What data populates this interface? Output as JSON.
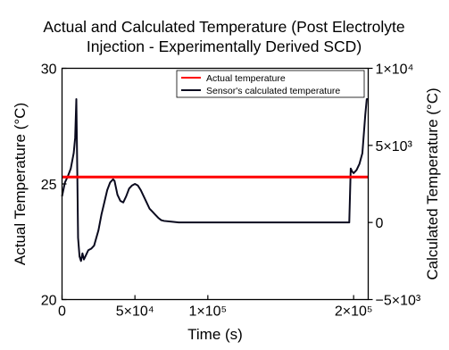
{
  "chart_data": {
    "type": "line",
    "title_lines": [
      "Actual and Calculated Temperature (Post Electrolyte",
      "Injection - Experimentally Derived SCD)"
    ],
    "xlabel": "Time (s)",
    "ylabel_left": "Actual Temperature (°C)",
    "ylabel_right": "Calculated Temperature (°C)",
    "xlim": [
      0,
      210000
    ],
    "ylim_left": [
      20,
      30
    ],
    "ylim_right": [
      -5000,
      10000
    ],
    "x_ticks": [
      {
        "value": 0,
        "label": "0"
      },
      {
        "value": 50000,
        "label": "5×10⁴"
      },
      {
        "value": 100000,
        "label": "1×10⁵"
      },
      {
        "value": 200000,
        "label": "2×10⁵"
      }
    ],
    "y_left_ticks": [
      {
        "value": 20,
        "label": "20"
      },
      {
        "value": 25,
        "label": "25"
      },
      {
        "value": 30,
        "label": "30"
      }
    ],
    "y_right_ticks": [
      {
        "value": -5000,
        "label": "−5×10³"
      },
      {
        "value": 0,
        "label": "0"
      },
      {
        "value": 5000,
        "label": "5×10³"
      },
      {
        "value": 10000,
        "label": "1×10⁴"
      }
    ],
    "grid": false,
    "legend_position": "top-right",
    "series": [
      {
        "name": "Actual temperature",
        "axis": "left",
        "color": "#ff0000",
        "x": [
          0,
          10000,
          20000,
          30000,
          40000,
          50000,
          60000,
          70000,
          80000,
          90000,
          100000,
          110000,
          120000,
          130000,
          140000,
          150000,
          160000,
          170000,
          180000,
          190000,
          200000,
          210000
        ],
        "y": [
          25.3,
          25.3,
          25.3,
          25.3,
          25.3,
          25.3,
          25.3,
          25.3,
          25.3,
          25.3,
          25.3,
          25.3,
          25.3,
          25.3,
          25.3,
          25.3,
          25.3,
          25.3,
          25.3,
          25.3,
          25.3,
          25.3
        ]
      },
      {
        "name": "Sensor's calculated temperature",
        "axis": "right",
        "color": "#0a0a1e",
        "x": [
          0,
          2000,
          4000,
          6000,
          8000,
          9000,
          9800,
          10500,
          11000,
          12000,
          13000,
          14000,
          15000,
          16000,
          17000,
          18000,
          20000,
          22000,
          25000,
          27000,
          29000,
          31000,
          33000,
          35000,
          36000,
          38000,
          40000,
          42000,
          44000,
          46000,
          48000,
          50000,
          52000,
          54000,
          56000,
          58000,
          60000,
          62000,
          64000,
          66000,
          68000,
          70000,
          75000,
          80000,
          90000,
          100000,
          110000,
          120000,
          130000,
          140000,
          150000,
          160000,
          170000,
          180000,
          190000,
          197000,
          198000,
          199000,
          200000,
          202000,
          204000,
          206000,
          208000,
          209000,
          210000
        ],
        "y": [
          1700,
          2600,
          3000,
          3500,
          4500,
          5500,
          8000,
          3000,
          -1000,
          -2200,
          -2500,
          -2000,
          -2400,
          -2200,
          -2000,
          -1800,
          -1700,
          -1500,
          -500,
          500,
          1300,
          2100,
          2600,
          2800,
          2700,
          1800,
          1400,
          1300,
          1700,
          2200,
          2400,
          2500,
          2400,
          2100,
          1700,
          1300,
          900,
          700,
          500,
          300,
          150,
          100,
          50,
          0,
          0,
          0,
          0,
          0,
          0,
          0,
          0,
          0,
          0,
          0,
          0,
          0,
          3500,
          3300,
          3200,
          3400,
          3800,
          4500,
          7000,
          8000,
          8000
        ]
      }
    ]
  }
}
